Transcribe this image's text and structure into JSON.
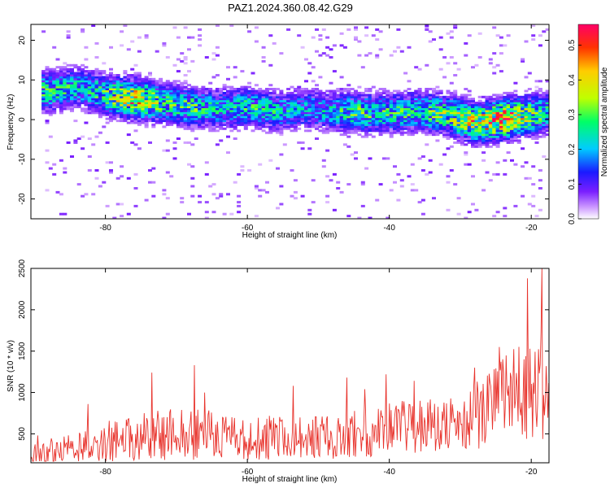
{
  "title": "PAZ1.2024.360.08.42.G29",
  "chart_data": [
    {
      "type": "heatmap",
      "xlabel": "Height of straight line (km)",
      "ylabel": "Frequency (Hz)",
      "xlim": [
        -90.5,
        -17.5
      ],
      "ylim": [
        -25,
        24
      ],
      "xticks": [
        -80,
        -60,
        -40,
        -20
      ],
      "yticks": [
        -20,
        -10,
        0,
        10,
        20
      ],
      "grid": false,
      "colorbar": {
        "label": "Normalized spectral amplitude",
        "range": [
          0,
          0.56
        ],
        "ticks": [
          0.0,
          0.1,
          0.2,
          0.3,
          0.4,
          0.5
        ],
        "colors": [
          "#ffffff",
          "#cc99ff",
          "#7a1fff",
          "#1a1aff",
          "#00ccff",
          "#00ff66",
          "#bfff00",
          "#ffcc00",
          "#ff3300",
          "#ff0066"
        ]
      },
      "ridge": {
        "description_points_x": [
          -88,
          -84,
          -80,
          -76,
          -72,
          -68,
          -64,
          -60,
          -56,
          -52,
          -48,
          -44,
          -40,
          -36,
          -32,
          -28,
          -24,
          -20,
          -18
        ],
        "center_frequency": [
          7,
          8,
          6,
          5,
          4,
          3,
          2.5,
          3,
          2,
          2.5,
          2,
          1.5,
          1.5,
          2,
          1,
          -1,
          0,
          1,
          1.5
        ],
        "peak_amplitude": [
          0.3,
          0.25,
          0.32,
          0.5,
          0.3,
          0.3,
          0.25,
          0.28,
          0.25,
          0.22,
          0.25,
          0.32,
          0.28,
          0.3,
          0.35,
          0.45,
          0.55,
          0.35,
          0.3
        ]
      }
    },
    {
      "type": "line",
      "xlabel": "Height of straight line (km)",
      "ylabel": "SNR (10 * v/v)",
      "xlim": [
        -90.5,
        -17.5
      ],
      "ylim": [
        150,
        2500
      ],
      "xticks": [
        -80,
        -60,
        -40,
        -20
      ],
      "yticks": [
        500,
        1000,
        1500,
        2000,
        2500
      ],
      "grid": false,
      "color": "#e8332c",
      "peaks": [
        {
          "x": -89.5,
          "y": 480
        },
        {
          "x": -82.5,
          "y": 860
        },
        {
          "x": -73.5,
          "y": 1240
        },
        {
          "x": -67.5,
          "y": 1330
        },
        {
          "x": -66.0,
          "y": 1000
        },
        {
          "x": -53.5,
          "y": 1080
        },
        {
          "x": -46.0,
          "y": 1180
        },
        {
          "x": -43.5,
          "y": 1040
        },
        {
          "x": -40.5,
          "y": 1220
        },
        {
          "x": -36.5,
          "y": 1140
        },
        {
          "x": -28.0,
          "y": 1300
        },
        {
          "x": -24.5,
          "y": 1550
        },
        {
          "x": -20.5,
          "y": 2380
        },
        {
          "x": -18.5,
          "y": 2500
        }
      ],
      "envelope": {
        "x": [
          -90.5,
          -85,
          -80,
          -75,
          -70,
          -65,
          -60,
          -55,
          -50,
          -45,
          -40,
          -35,
          -30,
          -27,
          -25,
          -22,
          -20,
          -17.5
        ],
        "mean": [
          250,
          300,
          380,
          420,
          480,
          450,
          400,
          430,
          420,
          480,
          520,
          600,
          560,
          700,
          900,
          950,
          1000,
          1050
        ],
        "spread": [
          150,
          180,
          250,
          300,
          320,
          300,
          260,
          280,
          270,
          300,
          320,
          350,
          320,
          450,
          500,
          550,
          650,
          700
        ]
      }
    }
  ]
}
